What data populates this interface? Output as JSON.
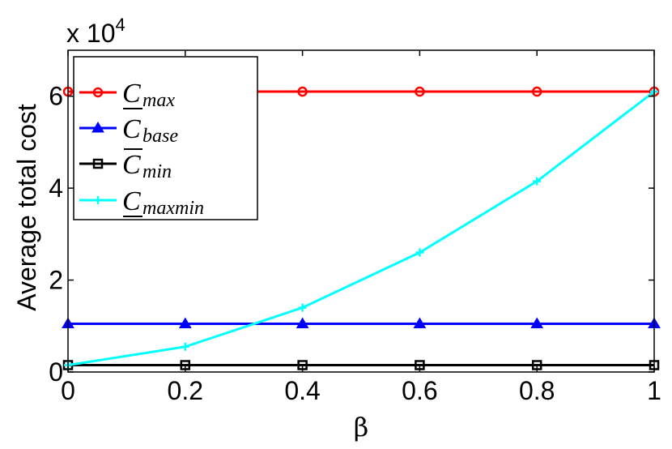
{
  "chart_data": {
    "type": "line",
    "title": "",
    "xlabel": "β",
    "ylabel": "Average total cost",
    "y_multiplier_label": "x 10",
    "y_multiplier_exponent": "4",
    "x": [
      0,
      0.2,
      0.4,
      0.6,
      0.8,
      1
    ],
    "xlim": [
      0,
      1
    ],
    "ylim": [
      0,
      70000
    ],
    "x_ticks": [
      "0",
      "0.2",
      "0.4",
      "0.6",
      "0.8",
      "1"
    ],
    "y_ticks": [
      "0",
      "2",
      "4",
      "6"
    ],
    "grid": false,
    "legend_position": "top-left",
    "series": [
      {
        "name": "C",
        "subscript": "max",
        "bar": "under",
        "color": "#ff0000",
        "marker": "circle",
        "values": [
          61000,
          61000,
          61000,
          61000,
          61000,
          61000
        ]
      },
      {
        "name": "C",
        "subscript": "base",
        "bar": "",
        "color": "#0000ff",
        "marker": "triangle",
        "values": [
          10500,
          10500,
          10500,
          10500,
          10500,
          10500
        ]
      },
      {
        "name": "C",
        "subscript": "min",
        "bar": "over",
        "color": "#000000",
        "marker": "square",
        "values": [
          1500,
          1500,
          1500,
          1500,
          1500,
          1500
        ]
      },
      {
        "name": "C",
        "subscript": "maxmin",
        "bar": "under",
        "color": "#00ffff",
        "marker": "plus",
        "values": [
          1500,
          5500,
          14000,
          26000,
          41500,
          61000
        ]
      }
    ]
  }
}
